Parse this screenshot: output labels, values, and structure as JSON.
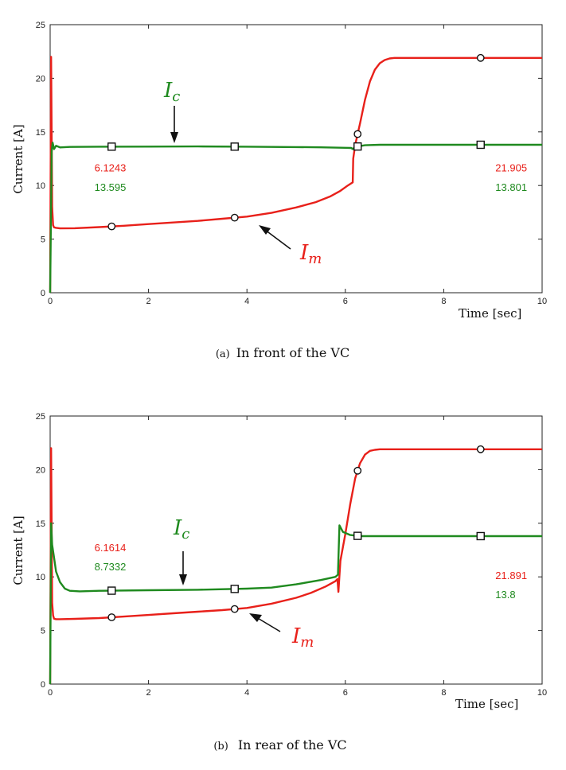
{
  "colors": {
    "red": "#e8201a",
    "green": "#1f8a1f",
    "axis": "#222222"
  },
  "chart_data": [
    {
      "type": "line",
      "caption_letter": "(a)",
      "caption": "In  front  of  the  VC",
      "ylabel": "Current [A]",
      "xlabel": "Time [sec]",
      "xlim": [
        0,
        10
      ],
      "ylim": [
        0,
        25
      ],
      "xticks": [
        0,
        2,
        4,
        6,
        8,
        10
      ],
      "yticks": [
        0,
        5,
        10,
        15,
        20,
        25
      ],
      "series": [
        {
          "name": "I_m",
          "label_main": "I",
          "label_sub": "m",
          "color": "#e8201a",
          "marker": "circle",
          "x": [
            0,
            0.02,
            0.04,
            0.06,
            0.08,
            0.12,
            0.2,
            0.5,
            1,
            1.5,
            2,
            2.5,
            3,
            3.5,
            4,
            4.5,
            5,
            5.4,
            5.7,
            5.9,
            6.05,
            6.15,
            6.16,
            6.2,
            6.3,
            6.4,
            6.5,
            6.6,
            6.7,
            6.8,
            6.9,
            7.0,
            7.5,
            8,
            8.5,
            9,
            9.5,
            10
          ],
          "y": [
            0,
            22,
            8.0,
            6.3,
            6.1,
            6.05,
            6.0,
            6.02,
            6.12,
            6.25,
            6.4,
            6.55,
            6.7,
            6.9,
            7.1,
            7.45,
            7.95,
            8.45,
            9.0,
            9.5,
            10.0,
            10.3,
            12.5,
            13.8,
            15.8,
            18.0,
            19.7,
            20.8,
            21.4,
            21.7,
            21.85,
            21.9,
            21.9,
            21.9,
            21.9,
            21.9,
            21.9,
            21.9
          ],
          "marker_x": [
            1.25,
            3.75,
            6.25,
            8.75
          ]
        },
        {
          "name": "I_c",
          "label_main": "I",
          "label_sub": "c",
          "color": "#1f8a1f",
          "marker": "square",
          "x": [
            0,
            0.03,
            0.05,
            0.08,
            0.12,
            0.2,
            0.4,
            1,
            2,
            3,
            4,
            5,
            5.5,
            6.0,
            6.12,
            6.15,
            6.2,
            6.4,
            6.7,
            7,
            8,
            9,
            10
          ],
          "y": [
            0,
            13.2,
            14.0,
            13.4,
            13.7,
            13.55,
            13.6,
            13.62,
            13.63,
            13.64,
            13.62,
            13.58,
            13.56,
            13.52,
            13.5,
            13.4,
            13.6,
            13.75,
            13.8,
            13.8,
            13.8,
            13.8,
            13.8
          ],
          "marker_x": [
            1.25,
            3.75,
            6.25,
            8.75
          ]
        }
      ],
      "annotations": [
        {
          "text": "6.1243",
          "color": "#e8201a",
          "x": 0.9,
          "y": 11.6
        },
        {
          "text": "13.595",
          "color": "#1f8a1f",
          "x": 0.9,
          "y": 9.8
        },
        {
          "text": "21.905",
          "color": "#e8201a",
          "x": 9.05,
          "y": 11.6
        },
        {
          "text": "13.801",
          "color": "#1f8a1f",
          "x": 9.05,
          "y": 9.8
        }
      ]
    },
    {
      "type": "line",
      "caption_letter": "(b)",
      "caption": "In  rear  of  the  VC",
      "ylabel": "Current [A]",
      "xlabel": "Time [sec]",
      "xlim": [
        0,
        10
      ],
      "ylim": [
        0,
        25
      ],
      "xticks": [
        0,
        2,
        4,
        6,
        8,
        10
      ],
      "yticks": [
        0,
        5,
        10,
        15,
        20,
        25
      ],
      "series": [
        {
          "name": "I_m",
          "label_main": "I",
          "label_sub": "m",
          "color": "#e8201a",
          "marker": "circle",
          "x": [
            0,
            0.02,
            0.04,
            0.06,
            0.08,
            0.12,
            0.2,
            0.5,
            1,
            1.5,
            2,
            2.5,
            3,
            3.5,
            4,
            4.5,
            5,
            5.3,
            5.6,
            5.8,
            5.84,
            5.86,
            5.9,
            6.0,
            6.1,
            6.2,
            6.3,
            6.4,
            6.5,
            6.6,
            6.7,
            7,
            7.5,
            8,
            8.5,
            9,
            9.5,
            10
          ],
          "y": [
            0,
            22,
            7.6,
            6.4,
            6.1,
            6.05,
            6.05,
            6.08,
            6.16,
            6.3,
            6.45,
            6.6,
            6.75,
            6.9,
            7.1,
            7.5,
            8.05,
            8.5,
            9.1,
            9.6,
            9.8,
            8.6,
            11.5,
            14.0,
            16.8,
            19.2,
            20.6,
            21.4,
            21.75,
            21.85,
            21.9,
            21.9,
            21.9,
            21.9,
            21.9,
            21.9,
            21.9,
            21.9
          ],
          "marker_x": [
            1.25,
            3.75,
            6.25,
            8.75
          ]
        },
        {
          "name": "I_c",
          "label_main": "I",
          "label_sub": "c",
          "color": "#1f8a1f",
          "marker": "square",
          "x": [
            0,
            0.02,
            0.04,
            0.08,
            0.12,
            0.2,
            0.3,
            0.4,
            0.6,
            1,
            2,
            3,
            4,
            4.5,
            5,
            5.5,
            5.8,
            5.85,
            5.88,
            5.95,
            6.1,
            6.3,
            6.6,
            7,
            8,
            9,
            10
          ],
          "y": [
            0,
            15.0,
            13.0,
            11.8,
            10.5,
            9.5,
            8.9,
            8.7,
            8.65,
            8.7,
            8.75,
            8.8,
            8.9,
            9.0,
            9.3,
            9.7,
            10.0,
            10.2,
            14.8,
            14.2,
            13.9,
            13.8,
            13.8,
            13.8,
            13.8,
            13.8,
            13.8
          ],
          "marker_x": [
            1.25,
            3.75,
            6.25,
            8.75
          ]
        }
      ],
      "annotations": [
        {
          "text": "6.1614",
          "color": "#e8201a",
          "x": 0.9,
          "y": 12.7
        },
        {
          "text": "8.7332",
          "color": "#1f8a1f",
          "x": 0.9,
          "y": 10.9
        },
        {
          "text": "21.891",
          "color": "#e8201a",
          "x": 9.05,
          "y": 10.1
        },
        {
          "text": "13.8",
          "color": "#1f8a1f",
          "x": 9.05,
          "y": 8.3
        }
      ]
    }
  ]
}
